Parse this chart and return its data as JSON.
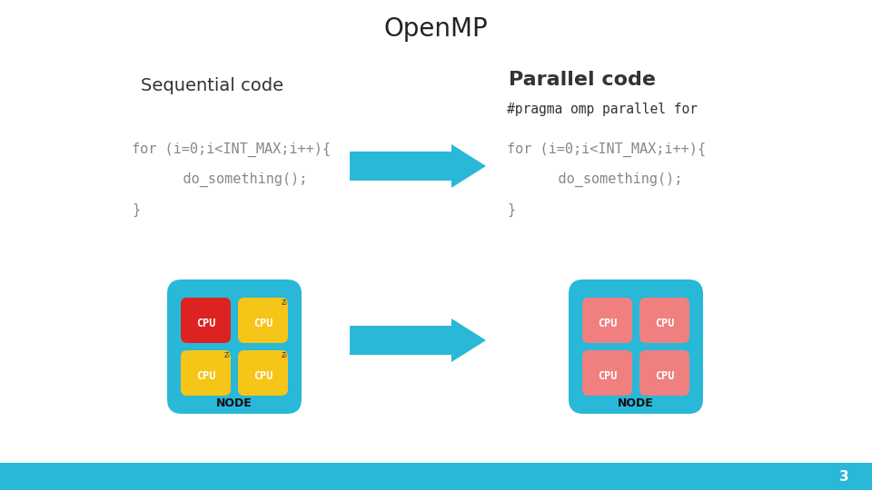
{
  "title": "OpenMP",
  "seq_label": "Sequential code",
  "par_label": "Parallel code",
  "pragma_line": "#pragma omp parallel for",
  "code_line1": "for (i=0;i<INT_MAX;i++){",
  "code_line2": "    do_something();",
  "code_line3": "}",
  "node_label": "NODE",
  "cpu_label": "CPU",
  "bg_color": "#ffffff",
  "title_color": "#222222",
  "seq_label_color": "#333333",
  "par_label_color": "#333333",
  "code_color": "#888888",
  "pragma_color": "#333333",
  "arrow_color": "#29b8d8",
  "node_bg_color": "#29b8d8",
  "cpu_active_color": "#f08080",
  "cpu_yellow_color": "#f5c518",
  "cpu_red_color": "#dd2222",
  "bottom_bar_color": "#29b8d8",
  "page_number": "3",
  "page_num_color": "#ffffff"
}
